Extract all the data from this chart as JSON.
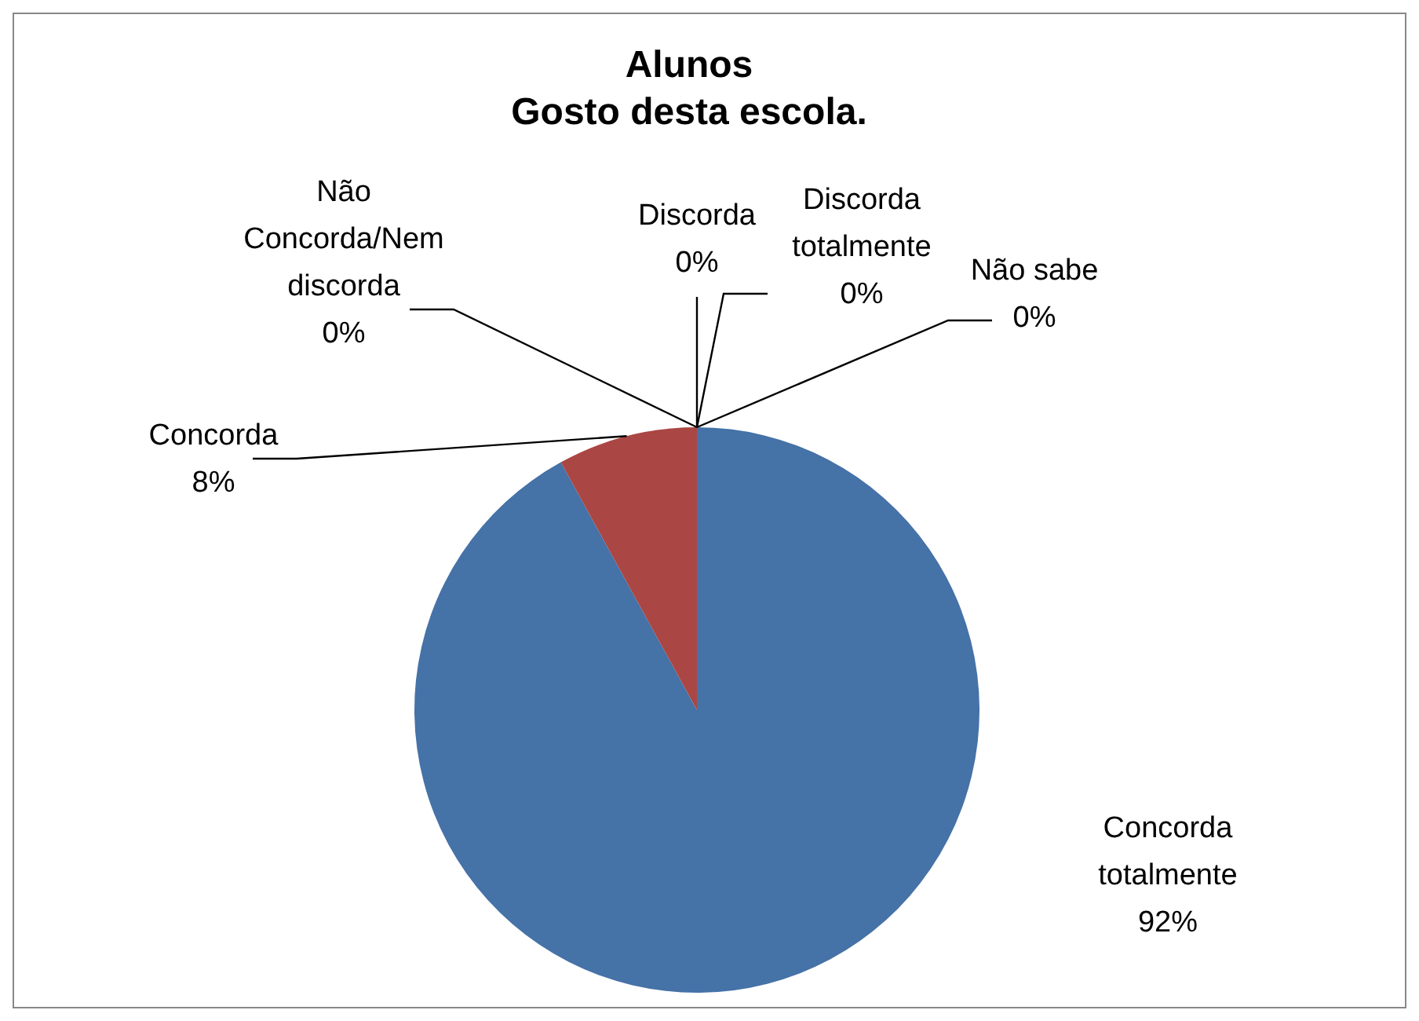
{
  "chart_data": {
    "type": "pie",
    "title": "Alunos\nGosto desta escola.",
    "categories": [
      "Concorda totalmente",
      "Concorda",
      "Não Concorda/Nem discorda",
      "Discorda",
      "Discorda totalmente",
      "Não sabe"
    ],
    "values": [
      92,
      8,
      0,
      0,
      0,
      0
    ],
    "colors": [
      "#4572a7",
      "#aa4643",
      "#89a54e",
      "#71588f",
      "#4198af",
      "#db843d"
    ],
    "value_labels": [
      "92%",
      "8%",
      "0%",
      "0%",
      "0%",
      "0%"
    ],
    "legend": false
  }
}
